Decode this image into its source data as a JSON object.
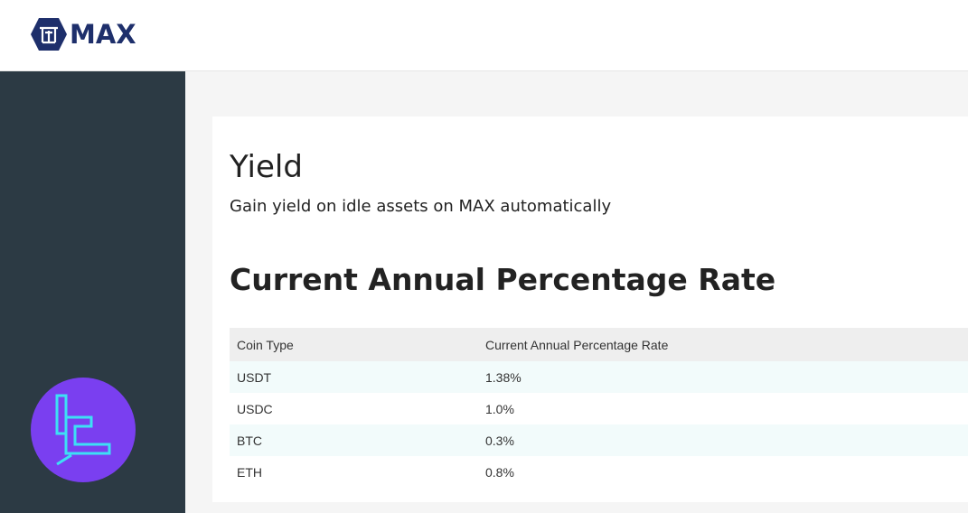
{
  "brand": {
    "name": "MAX",
    "color": "#1e2f6b"
  },
  "page": {
    "title": "Yield",
    "subtitle": "Gain yield on idle assets on MAX automatically",
    "section_title": "Current Annual Percentage Rate"
  },
  "table": {
    "headers": [
      "Coin Type",
      "Current Annual Percentage Rate"
    ],
    "rows": [
      {
        "coin": "USDT",
        "rate": "1.38%"
      },
      {
        "coin": "USDC",
        "rate": "1.0%"
      },
      {
        "coin": "BTC",
        "rate": "0.3%"
      },
      {
        "coin": "ETH",
        "rate": "0.8%"
      }
    ]
  },
  "colors": {
    "sidebar": "#2c3a44",
    "badge": "#7a3ff0",
    "badge_mark": "#3de0f5",
    "row_stripe": "#f2fbfb"
  },
  "icons": {
    "logo": "max-hexagon-logo-icon",
    "badge": "tc-badge-icon"
  }
}
